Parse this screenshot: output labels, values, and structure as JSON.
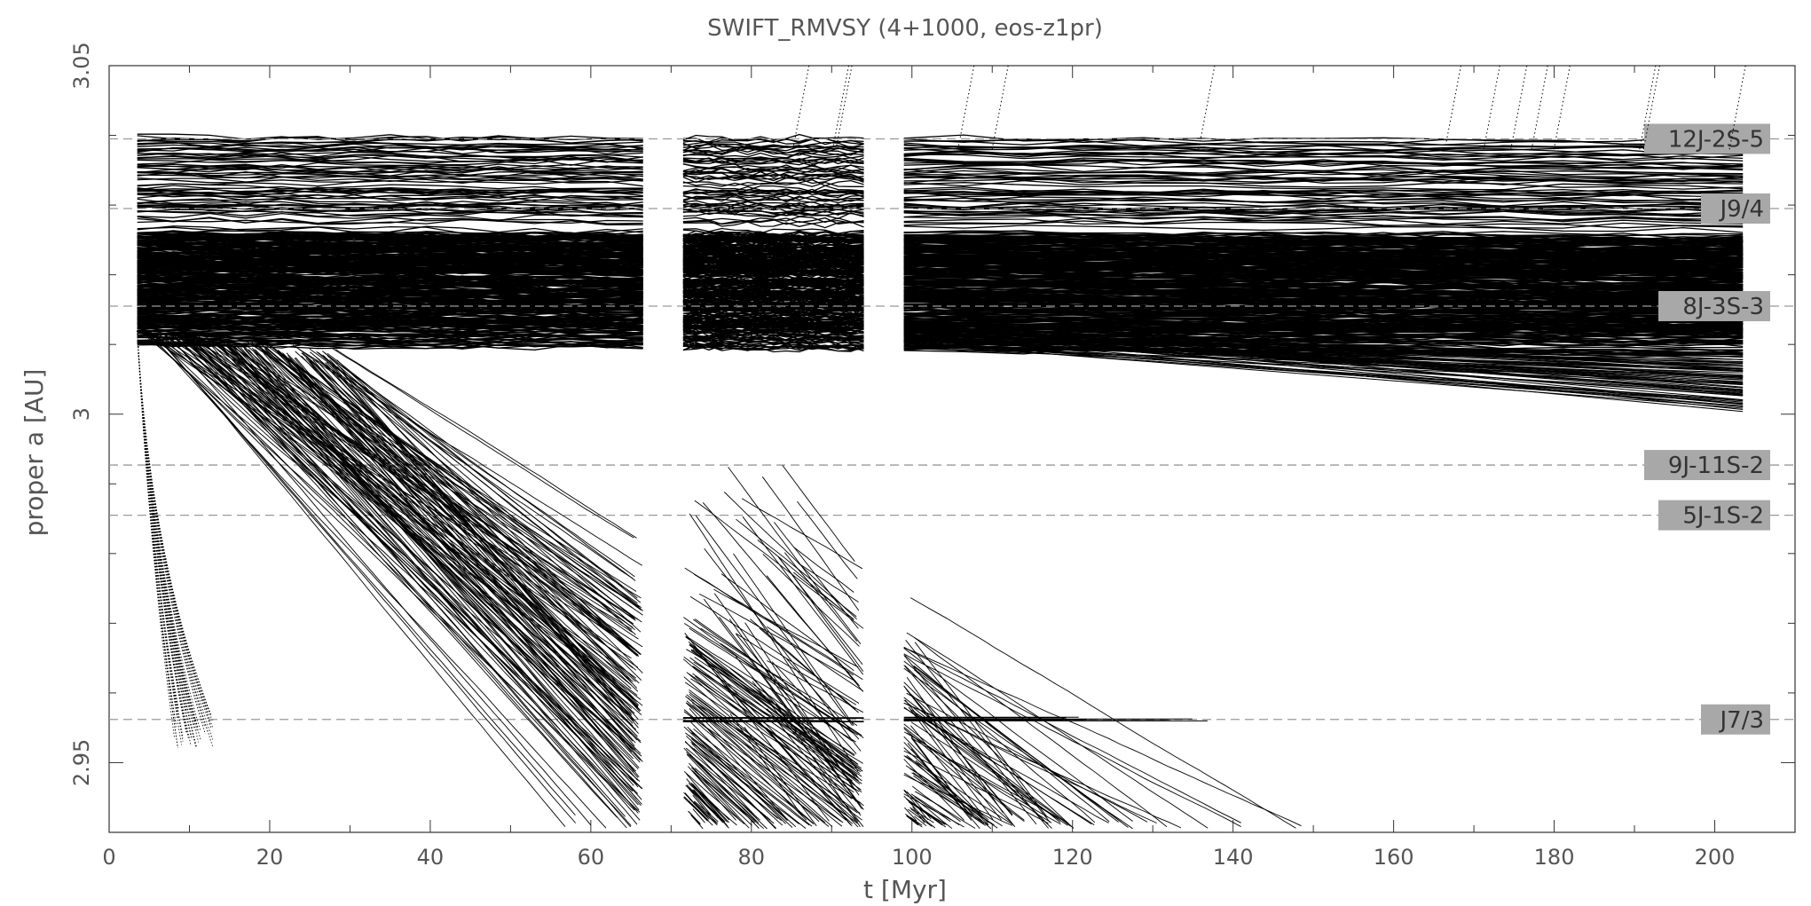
{
  "chart_data": {
    "type": "line",
    "title": "SWIFT_RMVSY (4+1000, eos-z1pr)",
    "xlabel": "t [Myr]",
    "ylabel": "proper a [AU]",
    "xlim": [
      0,
      210
    ],
    "ylim": [
      2.94,
      3.05
    ],
    "xticks": [
      0,
      20,
      40,
      60,
      80,
      100,
      120,
      140,
      160,
      180,
      200
    ],
    "yticks": [
      2.95,
      3,
      3.05
    ],
    "ytick_labels": [
      "2.95",
      "3",
      "3.05"
    ],
    "resonances": [
      {
        "label": "12J-2S-5",
        "a": 3.0395
      },
      {
        "label": "J9/4",
        "a": 3.0295
      },
      {
        "label": "8J-3S-3",
        "a": 3.0155
      },
      {
        "label": "9J-11S-2",
        "a": 2.9927
      },
      {
        "label": "5J-1S-2",
        "a": 2.9855
      },
      {
        "label": "J7/3",
        "a": 2.9562
      }
    ],
    "segments": [
      {
        "t_start": 3.5,
        "t_end": 66.5
      },
      {
        "t_start": 71.5,
        "t_end": 94
      },
      {
        "t_start": 99,
        "t_end": 203.5
      }
    ],
    "stable_band": {
      "a_min": 3.0,
      "a_max": 3.04,
      "dense_min": 3.012,
      "dense_max": 3.026
    },
    "drifting_groups": [
      {
        "description": "fast drift from 3.012",
        "t0": 3.5,
        "a0": 3.012,
        "slope_range": [
          -0.0014,
          -0.0007
        ]
      },
      {
        "description": "steep early drift",
        "t0": 3.5,
        "a0": 3.012,
        "a_end": 2.952,
        "t_end_range": [
          8,
          13
        ]
      }
    ],
    "series": [
      {
        "values": [
          [
            3.5,
            3.039
          ],
          [
            66.5,
            3.039
          ],
          [
            71.5,
            3.039
          ],
          [
            94,
            3.039
          ],
          [
            99,
            3.039
          ],
          [
            203.5,
            3.039
          ]
        ]
      },
      {
        "values": [
          [
            3.5,
            3.029
          ],
          [
            66.5,
            3.029
          ],
          [
            71.5,
            3.029
          ],
          [
            94,
            3.029
          ],
          [
            99,
            3.029
          ],
          [
            203.5,
            3.029
          ]
        ]
      },
      {
        "values": [
          [
            3.5,
            3.012
          ],
          [
            66.5,
            3.009
          ],
          [
            71.5,
            3.009
          ],
          [
            94,
            3.009
          ],
          [
            99,
            3.009
          ],
          [
            203.5,
            3.0
          ]
        ]
      }
    ]
  }
}
